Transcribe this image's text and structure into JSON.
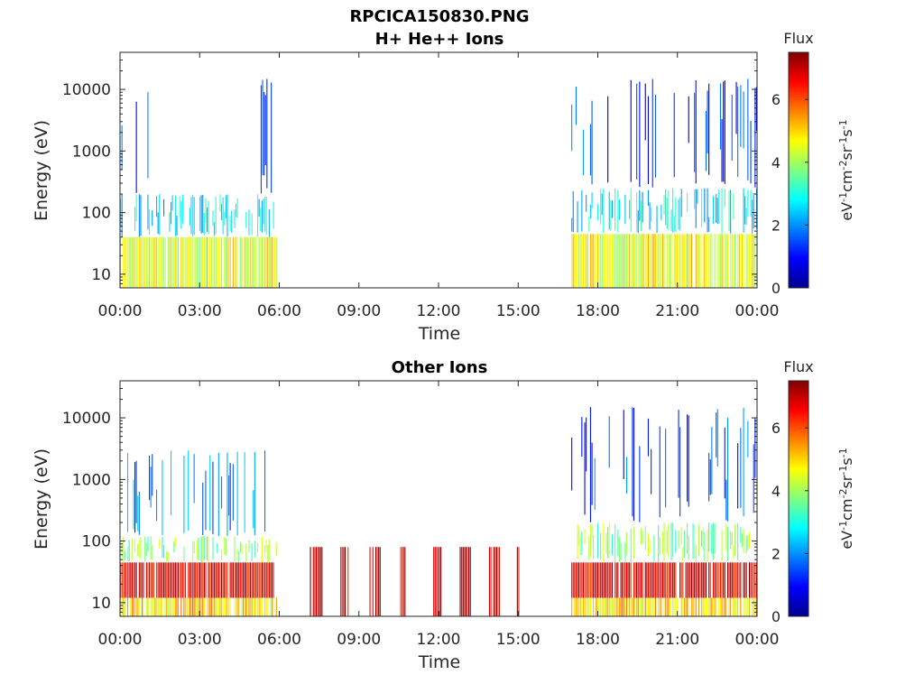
{
  "figure": {
    "filename": "RPCICA150830.PNG"
  },
  "colormap": [
    "#00008f",
    "#0000ff",
    "#0080ff",
    "#00ffff",
    "#80ff80",
    "#ffff00",
    "#ff8000",
    "#ff0000",
    "#800000"
  ],
  "chart_data": [
    {
      "type": "heatmap",
      "title": "H+ He++ Ions",
      "xlabel": "Time",
      "ylabel": "Energy (eV)",
      "x_ticks": [
        "00:00",
        "03:00",
        "06:00",
        "09:00",
        "12:00",
        "15:00",
        "18:00",
        "21:00",
        "00:00"
      ],
      "x_range_hours": [
        0,
        24
      ],
      "y_scale": "log",
      "y_ticks": [
        10,
        100,
        1000,
        10000
      ],
      "y_tick_labels": [
        "10",
        "100",
        "1000",
        "10000"
      ],
      "y_range": [
        6,
        40000
      ],
      "colorbar": {
        "label": "Flux",
        "unit": "eV-1cm-2sr-1s-1",
        "range": [
          0,
          7.5
        ],
        "ticks": [
          "0",
          "2",
          "4",
          "6"
        ]
      },
      "data_intervals_hours": [
        [
          0,
          5.9
        ],
        [
          17.0,
          24
        ]
      ],
      "bands": [
        {
          "t_start": 0,
          "t_end": 5.9,
          "e_min": 6,
          "e_max": 40,
          "flux": 4.5
        },
        {
          "t_start": 0,
          "t_end": 5.9,
          "e_min": 40,
          "e_max": 200,
          "flux": 2.6
        },
        {
          "t_start": 0,
          "t_end": 1.1,
          "e_min": 200,
          "e_max": 15000,
          "flux": 1.2
        },
        {
          "t_start": 5.3,
          "t_end": 5.9,
          "e_min": 200,
          "e_max": 15000,
          "flux": 1.2
        },
        {
          "t_start": 17.0,
          "t_end": 24,
          "e_min": 6,
          "e_max": 45,
          "flux": 4.6
        },
        {
          "t_start": 17.0,
          "t_end": 24,
          "e_min": 45,
          "e_max": 250,
          "flux": 2.7
        },
        {
          "t_start": 17.0,
          "t_end": 24,
          "e_min": 250,
          "e_max": 15000,
          "flux": 1.3
        }
      ]
    },
    {
      "type": "heatmap",
      "title": "Other Ions",
      "xlabel": "Time",
      "ylabel": "Energy (eV)",
      "x_ticks": [
        "00:00",
        "03:00",
        "06:00",
        "09:00",
        "12:00",
        "15:00",
        "18:00",
        "21:00",
        "00:00"
      ],
      "x_range_hours": [
        0,
        24
      ],
      "y_scale": "log",
      "y_ticks": [
        10,
        100,
        1000,
        10000
      ],
      "y_tick_labels": [
        "10",
        "100",
        "1000",
        "10000"
      ],
      "y_range": [
        6,
        40000
      ],
      "colorbar": {
        "label": "Flux",
        "unit": "eV-1cm-2sr-1s-1",
        "range": [
          0,
          7.5
        ],
        "ticks": [
          "0",
          "2",
          "4",
          "6"
        ]
      },
      "data_intervals_hours": [
        [
          0,
          5.9
        ],
        [
          17.0,
          24
        ]
      ],
      "bands": [
        {
          "t_start": 0,
          "t_end": 5.9,
          "e_min": 6,
          "e_max": 12,
          "flux": 5.0
        },
        {
          "t_start": 0,
          "t_end": 5.9,
          "e_min": 12,
          "e_max": 45,
          "flux": 6.8
        },
        {
          "t_start": 0,
          "t_end": 5.9,
          "e_min": 45,
          "e_max": 120,
          "flux": 3.8
        },
        {
          "t_start": 0,
          "t_end": 5.9,
          "e_min": 120,
          "e_max": 3000,
          "flux": 1.8
        },
        {
          "t_start": 7.1,
          "t_end": 7.6,
          "e_min": 6,
          "e_max": 80,
          "flux": 7.3
        },
        {
          "t_start": 8.3,
          "t_end": 8.6,
          "e_min": 6,
          "e_max": 80,
          "flux": 6.9
        },
        {
          "t_start": 9.4,
          "t_end": 9.8,
          "e_min": 6,
          "e_max": 80,
          "flux": 6.9
        },
        {
          "t_start": 10.5,
          "t_end": 10.8,
          "e_min": 6,
          "e_max": 80,
          "flux": 6.9
        },
        {
          "t_start": 11.8,
          "t_end": 12.1,
          "e_min": 6,
          "e_max": 80,
          "flux": 6.9
        },
        {
          "t_start": 12.8,
          "t_end": 13.2,
          "e_min": 6,
          "e_max": 80,
          "flux": 6.9
        },
        {
          "t_start": 13.9,
          "t_end": 14.3,
          "e_min": 6,
          "e_max": 80,
          "flux": 6.9
        },
        {
          "t_start": 14.95,
          "t_end": 15.05,
          "e_min": 6,
          "e_max": 80,
          "flux": 6.9
        },
        {
          "t_start": 17.0,
          "t_end": 24,
          "e_min": 6,
          "e_max": 12,
          "flux": 5.0
        },
        {
          "t_start": 17.0,
          "t_end": 24,
          "e_min": 12,
          "e_max": 45,
          "flux": 6.8
        },
        {
          "t_start": 17.0,
          "t_end": 24,
          "e_min": 45,
          "e_max": 200,
          "flux": 3.8
        },
        {
          "t_start": 17.0,
          "t_end": 24,
          "e_min": 200,
          "e_max": 15000,
          "flux": 1.5
        }
      ]
    }
  ]
}
